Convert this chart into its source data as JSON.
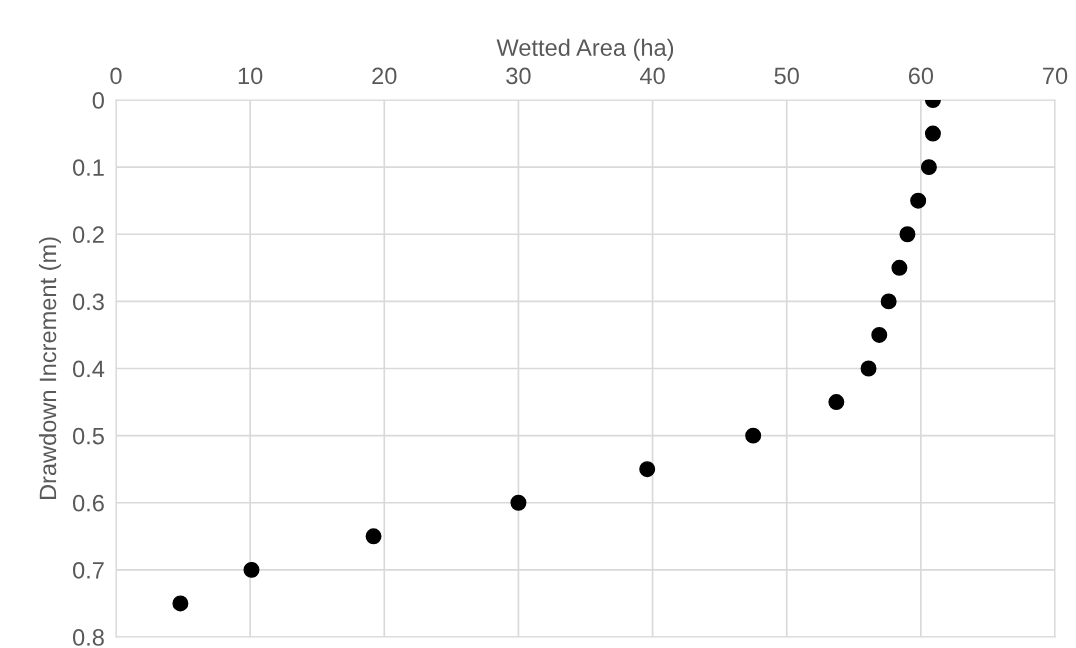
{
  "chart_data": {
    "type": "scatter",
    "xlabel": "Wetted Area (ha)",
    "ylabel": "Drawdown Increment (m)",
    "x": [
      60.9,
      60.9,
      60.6,
      59.8,
      59.0,
      58.4,
      57.6,
      56.9,
      56.1,
      53.7,
      47.5,
      39.6,
      30.0,
      19.2,
      10.1,
      4.8
    ],
    "series": [
      {
        "color": "#000000",
        "values": [
          0,
          0.05,
          0.1,
          0.15,
          0.2,
          0.25,
          0.3,
          0.35,
          0.4,
          0.45,
          0.5,
          0.55,
          0.6,
          0.65,
          0.7,
          0.75
        ]
      }
    ],
    "xlim": [
      0,
      70
    ],
    "xticks": [
      0,
      10,
      20,
      30,
      40,
      50,
      60,
      70
    ],
    "ylim": [
      0.8,
      0
    ],
    "yticks": [
      {
        "value": 0,
        "label": "0"
      },
      0.1,
      0.2,
      0.3,
      0.4,
      0.5,
      0.6,
      0.7,
      0.8
    ],
    "grid": true,
    "marker": "circle",
    "legend": false
  }
}
